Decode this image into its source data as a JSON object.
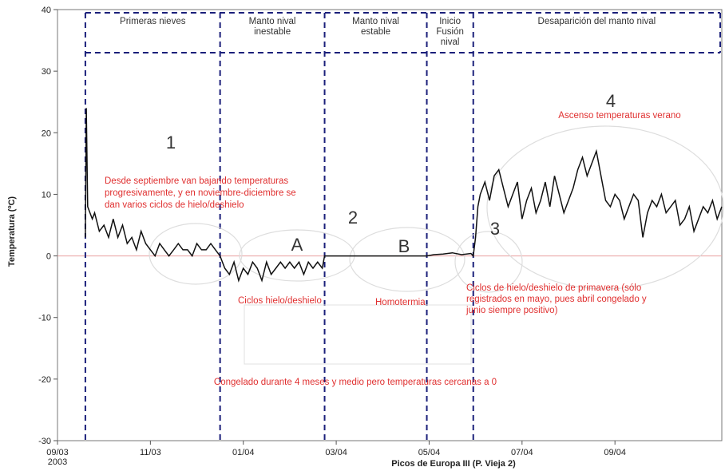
{
  "chart_data": {
    "type": "line",
    "xlabel": "Picos de Europa III (P. Vieja 2)",
    "ylabel": "Temperatura (ºC)",
    "ylim": [
      -30,
      40
    ],
    "xlim": [
      0,
      14.3
    ],
    "y_ticks": [
      40,
      30,
      20,
      10,
      0,
      -10,
      -20,
      -30
    ],
    "x_ticks": [
      {
        "x": 0,
        "label": "09/03",
        "label2": "2003"
      },
      {
        "x": 2,
        "label": "11/03",
        "label2": ""
      },
      {
        "x": 4,
        "label": "01/04",
        "label2": ""
      },
      {
        "x": 6,
        "label": "03/04",
        "label2": ""
      },
      {
        "x": 8,
        "label": "05/04",
        "label2": ""
      },
      {
        "x": 10,
        "label": "07/04",
        "label2": ""
      },
      {
        "x": 12,
        "label": "09/04",
        "label2": ""
      }
    ],
    "phase_boundaries": [
      0.6,
      3.5,
      5.75,
      7.95,
      8.95
    ],
    "phases": [
      {
        "label": [
          "Primeras nieves"
        ]
      },
      {
        "label": [
          "Manto nival",
          "inestable"
        ]
      },
      {
        "label": [
          "Manto nival",
          "estable"
        ]
      },
      {
        "label": [
          "Inicio",
          "Fusión",
          "nival"
        ]
      },
      {
        "label": [
          "Desaparición del manto nival"
        ]
      }
    ],
    "markers": [
      "1",
      "A",
      "2",
      "B",
      "3",
      "4"
    ],
    "annotations": {
      "summer": "Ascenso temperaturas verano",
      "autumn": [
        "Desde septiembre van bajando temperaturas",
        "progresivamente, y en noviembre-diciembre se",
        "dan varios ciclos de hielo/deshielo"
      ],
      "cycles": "Ciclos hielo/deshielo",
      "homo": "Homotermia",
      "spring": [
        "Ciclos de hielo/deshielo de primavera (sólo",
        "registrados en mayo, pues abril congelado y",
        "junio siempre positivo)"
      ],
      "frozen": "Congelado durante 4 meses y medio pero temperaturas cercanas a 0"
    },
    "series": [
      {
        "color": "#111111",
        "x": [
          0.6,
          0.62,
          0.65,
          0.7,
          0.75,
          0.8,
          0.9,
          1.0,
          1.1,
          1.2,
          1.3,
          1.4,
          1.5,
          1.6,
          1.7,
          1.8,
          1.9,
          2.0,
          2.1,
          2.2,
          2.3,
          2.4,
          2.5,
          2.6,
          2.7,
          2.8,
          2.9,
          3.0,
          3.1,
          3.2,
          3.3,
          3.4,
          3.5,
          3.6,
          3.7,
          3.8,
          3.9,
          4.0,
          4.1,
          4.2,
          4.3,
          4.4,
          4.5,
          4.6,
          4.7,
          4.8,
          4.9,
          5.0,
          5.1,
          5.2,
          5.3,
          5.4,
          5.5,
          5.6,
          5.7,
          5.75,
          6.0,
          6.5,
          7.0,
          7.5,
          7.95,
          8.1,
          8.3,
          8.5,
          8.7,
          8.9,
          8.95,
          9.0,
          9.05,
          9.1,
          9.2,
          9.3,
          9.4,
          9.5,
          9.6,
          9.7,
          9.8,
          9.9,
          10.0,
          10.1,
          10.2,
          10.3,
          10.4,
          10.5,
          10.6,
          10.7,
          10.8,
          10.9,
          11.0,
          11.1,
          11.2,
          11.3,
          11.4,
          11.5,
          11.6,
          11.7,
          11.8,
          11.9,
          12.0,
          12.1,
          12.2,
          12.3,
          12.4,
          12.5,
          12.6,
          12.7,
          12.8,
          12.9,
          13.0,
          13.1,
          13.2,
          13.3,
          13.4,
          13.5,
          13.6,
          13.7,
          13.8,
          13.9,
          14.0,
          14.1,
          14.2,
          14.3
        ],
        "y": [
          3,
          24,
          8,
          7,
          6,
          7,
          4,
          5,
          3,
          6,
          3,
          5,
          2,
          3,
          1,
          4,
          2,
          1,
          0,
          2,
          1,
          0,
          1,
          2,
          1,
          1,
          0,
          2,
          1,
          1,
          2,
          1,
          0,
          -2,
          -3,
          -1,
          -4,
          -2,
          -3,
          -1,
          -2,
          -4,
          -1,
          -3,
          -2,
          -1,
          -2,
          -1,
          -2,
          -1,
          -3,
          -1,
          -2,
          -1,
          -2,
          0,
          0,
          0,
          0,
          0,
          0,
          0.2,
          0.3,
          0.5,
          0.2,
          0.4,
          0,
          3,
          8,
          10,
          12,
          9,
          13,
          14,
          11,
          8,
          10,
          12,
          6,
          9,
          11,
          7,
          9,
          12,
          8,
          13,
          10,
          7,
          9,
          11,
          14,
          16,
          13,
          15,
          17,
          13,
          9,
          8,
          10,
          9,
          6,
          8,
          10,
          9,
          3,
          7,
          9,
          8,
          10,
          7,
          8,
          9,
          5,
          6,
          8,
          4,
          6,
          8,
          7,
          9,
          6,
          8
        ]
      }
    ]
  }
}
